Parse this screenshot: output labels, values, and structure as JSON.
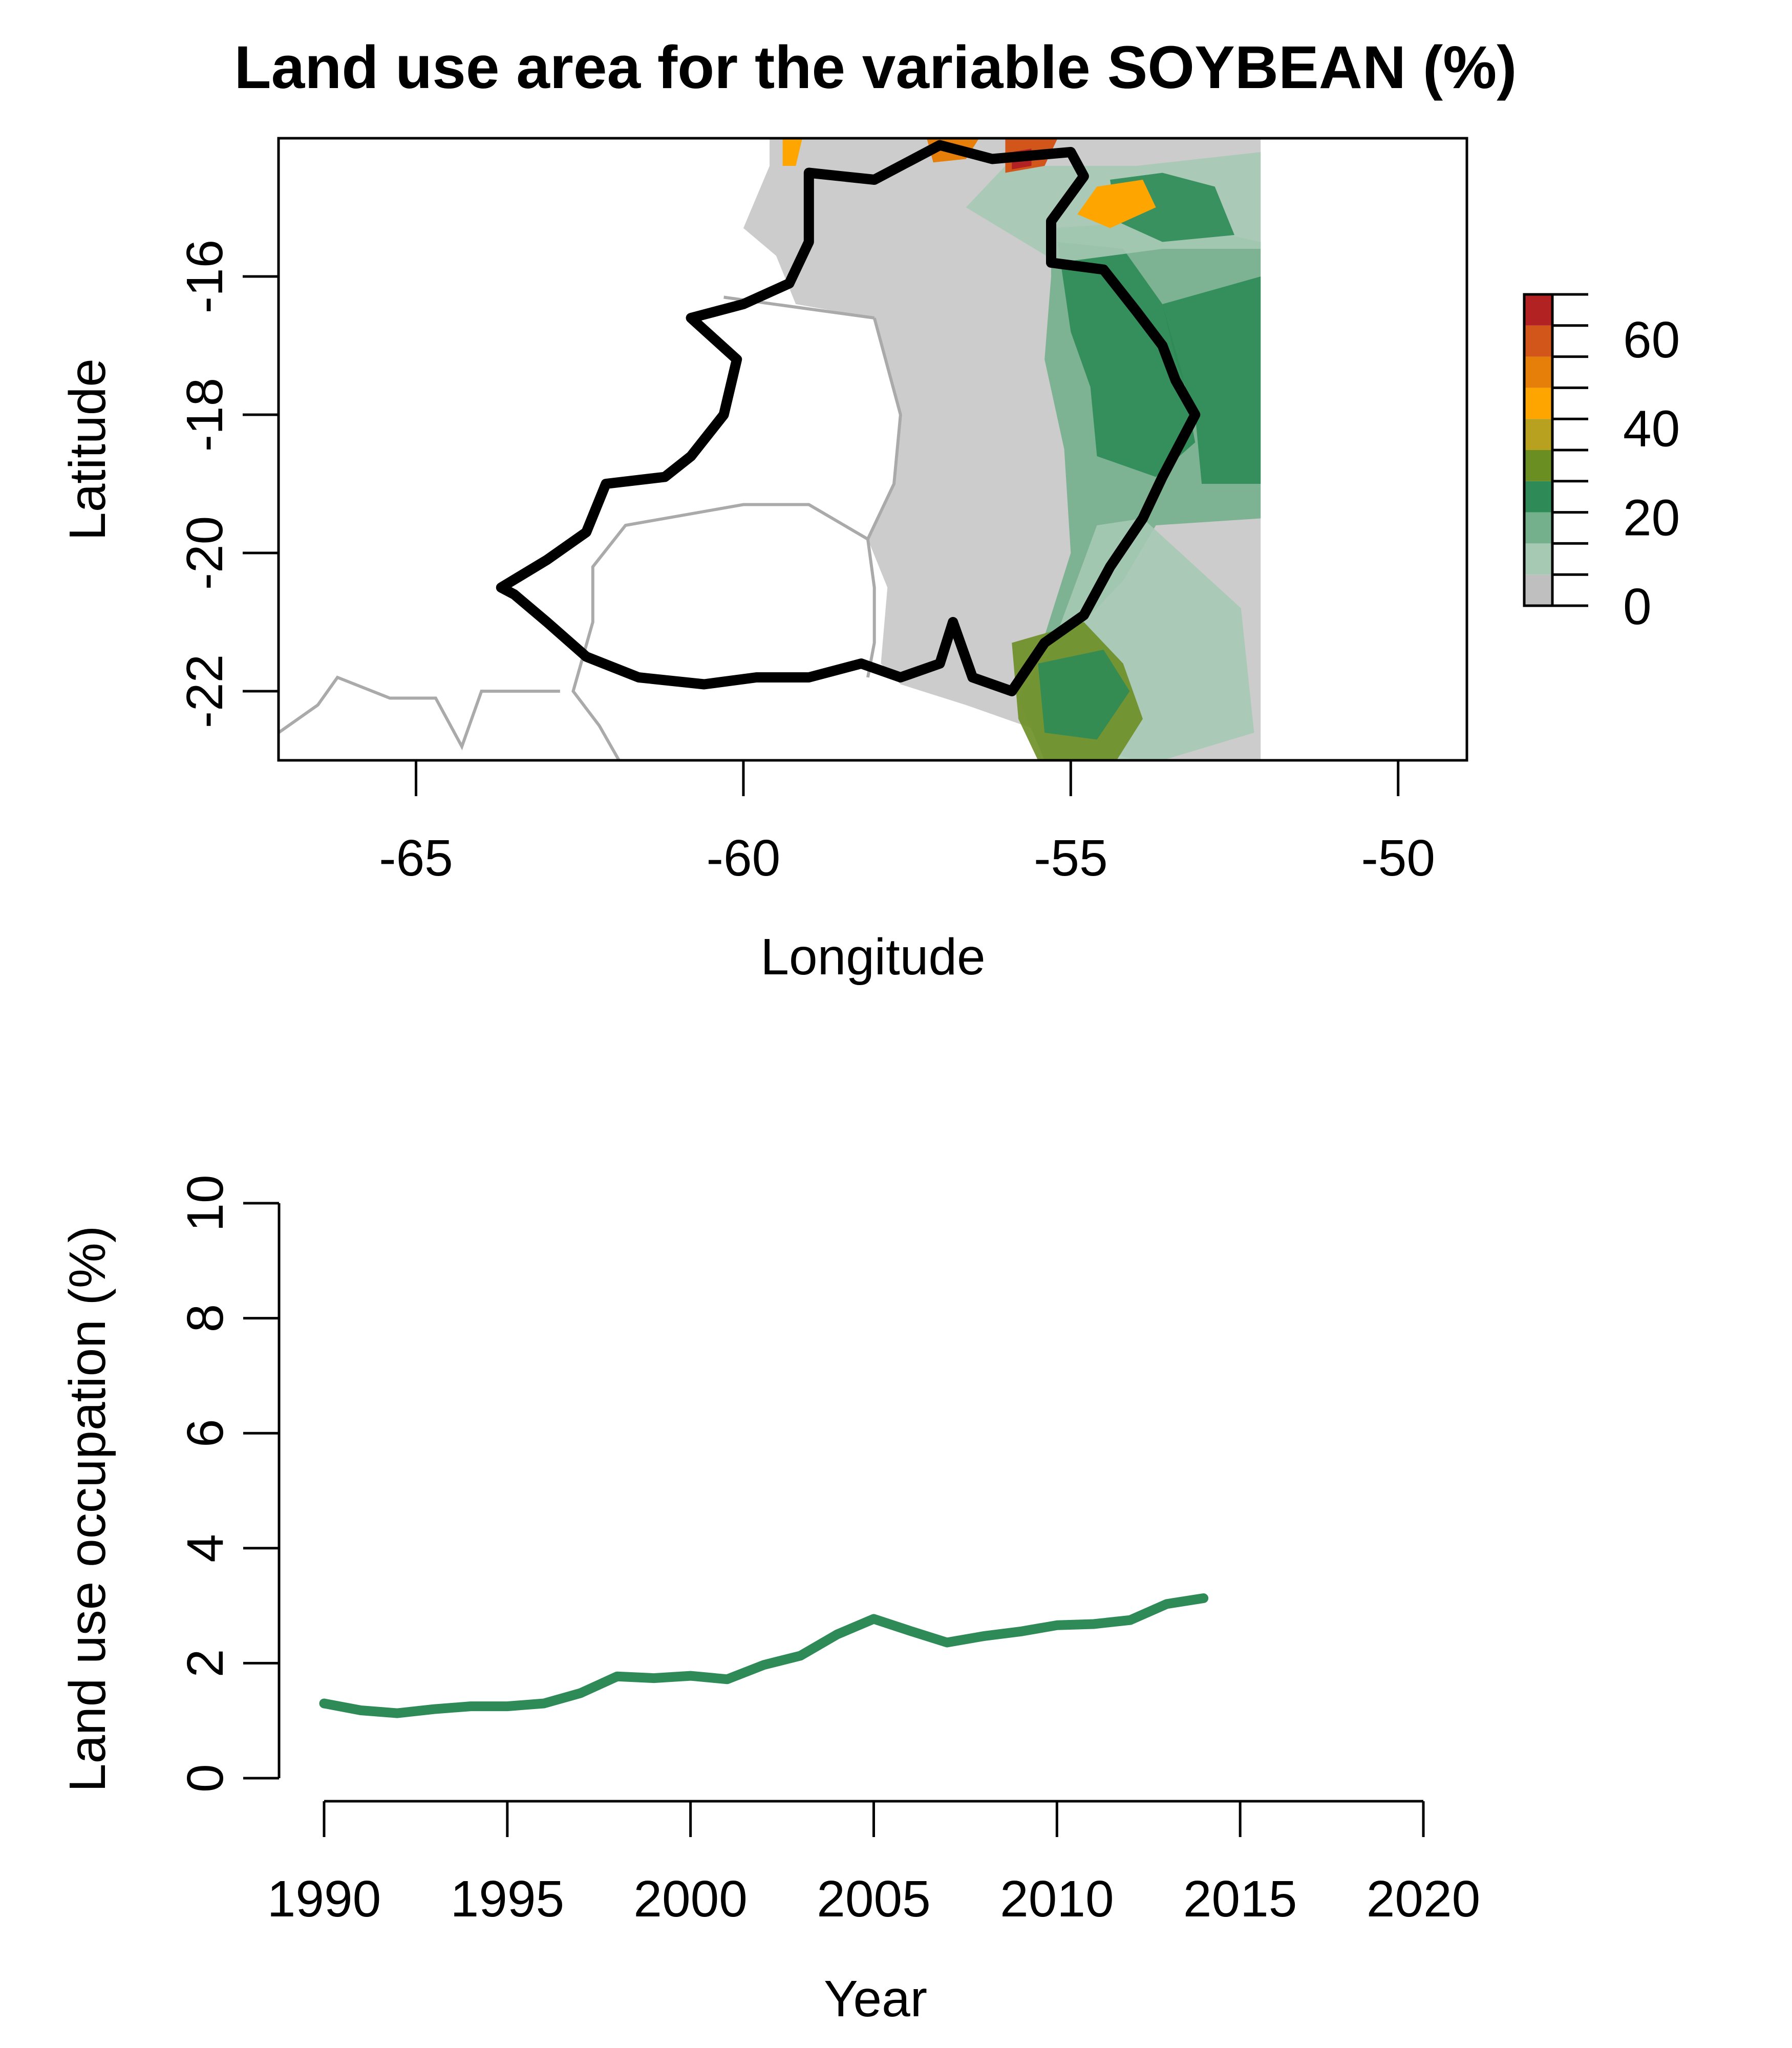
{
  "title": "Land use area for the variable SOYBEAN (%)",
  "colors": {
    "background_land": "#cccccc",
    "boundary": "#000000",
    "borders": "#aaaaaa",
    "series_line": "#2e8b57",
    "legend_bins": [
      "#bfbfbf",
      "#a6c9b4",
      "#74b08c",
      "#2e8b57",
      "#6b8e23",
      "#b8a11e",
      "#ffa500",
      "#e67e0a",
      "#d2561a",
      "#b22222"
    ]
  },
  "chart_data": [
    {
      "type": "heatmap",
      "title": "Land use area for the variable SOYBEAN (%)",
      "xlabel": "Longitude",
      "ylabel": "Latitude",
      "xlim": [
        -67.1,
        -48.95
      ],
      "ylim": [
        -23.0,
        -14.0
      ],
      "xticks": [
        -65,
        -60,
        -55,
        -50
      ],
      "yticks": [
        -16,
        -18,
        -20,
        -22
      ],
      "grid": false,
      "legend": {
        "placement": "right",
        "ticks": [
          0,
          20,
          40,
          60
        ],
        "range": [
          0,
          70
        ],
        "bins": 10
      },
      "raster_extent": {
        "lon": [
          -55.5,
          -52.1
        ],
        "lat": [
          -23.0,
          -14.0
        ]
      },
      "boundary": [
        [
          -59.0,
          -14.5
        ],
        [
          -58.0,
          -14.6
        ],
        [
          -57.0,
          -14.1
        ],
        [
          -56.2,
          -14.3
        ],
        [
          -55.0,
          -14.2
        ],
        [
          -54.8,
          -14.55
        ],
        [
          -55.3,
          -15.2
        ],
        [
          -55.3,
          -15.8
        ],
        [
          -54.5,
          -15.9
        ],
        [
          -54.0,
          -16.5
        ],
        [
          -53.6,
          -17.0
        ],
        [
          -53.4,
          -17.5
        ],
        [
          -53.1,
          -18.0
        ],
        [
          -53.6,
          -18.9
        ],
        [
          -53.9,
          -19.5
        ],
        [
          -54.4,
          -20.2
        ],
        [
          -54.8,
          -20.9
        ],
        [
          -55.4,
          -21.3
        ],
        [
          -55.9,
          -22.0
        ],
        [
          -56.5,
          -21.8
        ],
        [
          -56.8,
          -21.0
        ],
        [
          -57.0,
          -21.6
        ],
        [
          -57.6,
          -21.8
        ],
        [
          -58.2,
          -21.6
        ],
        [
          -59.0,
          -21.8
        ],
        [
          -59.8,
          -21.8
        ],
        [
          -60.6,
          -21.9
        ],
        [
          -61.6,
          -21.8
        ],
        [
          -62.4,
          -21.5
        ],
        [
          -63.0,
          -21.0
        ],
        [
          -63.5,
          -20.6
        ],
        [
          -63.7,
          -20.5
        ],
        [
          -63.0,
          -20.1
        ],
        [
          -62.4,
          -19.7
        ],
        [
          -62.1,
          -19.0
        ],
        [
          -61.2,
          -18.9
        ],
        [
          -60.8,
          -18.6
        ],
        [
          -60.3,
          -18.0
        ],
        [
          -60.1,
          -17.2
        ],
        [
          -60.8,
          -16.6
        ],
        [
          -60.0,
          -16.4
        ],
        [
          -59.3,
          -16.1
        ],
        [
          -59.0,
          -15.5
        ],
        [
          -59.0,
          -14.5
        ]
      ],
      "borders": [
        [
          [
            -58.0,
            -16.6
          ],
          [
            -60.3,
            -16.3
          ]
        ],
        [
          [
            -58.0,
            -16.6
          ],
          [
            -57.8,
            -17.3
          ],
          [
            -57.6,
            -18.0
          ],
          [
            -57.7,
            -19.0
          ],
          [
            -58.1,
            -19.8
          ],
          [
            -58.0,
            -20.5
          ],
          [
            -58.0,
            -21.3
          ],
          [
            -58.1,
            -21.8
          ]
        ],
        [
          [
            -58.1,
            -19.8
          ],
          [
            -59.0,
            -19.3
          ],
          [
            -60.0,
            -19.3
          ],
          [
            -61.8,
            -19.6
          ],
          [
            -62.3,
            -20.2
          ],
          [
            -62.3,
            -21.0
          ],
          [
            -62.6,
            -22.0
          ],
          [
            -62.2,
            -22.5
          ],
          [
            -61.9,
            -23.0
          ]
        ],
        [
          [
            -67.1,
            -22.6
          ],
          [
            -66.5,
            -22.2
          ],
          [
            -66.2,
            -21.8
          ],
          [
            -65.4,
            -22.1
          ],
          [
            -64.7,
            -22.1
          ],
          [
            -64.3,
            -22.8
          ],
          [
            -64.0,
            -22.0
          ],
          [
            -62.8,
            -22.0
          ]
        ]
      ]
    },
    {
      "type": "line",
      "xlabel": "Year",
      "ylabel": "Land use occupation (%)",
      "xlim": [
        1990,
        2020
      ],
      "ylim": [
        0,
        10
      ],
      "xticks": [
        1990,
        1995,
        2000,
        2005,
        2010,
        2015,
        2020
      ],
      "yticks": [
        0,
        2,
        4,
        6,
        8,
        10
      ],
      "grid": false,
      "x": [
        1990,
        1991,
        1992,
        1993,
        1994,
        1995,
        1996,
        1997,
        1998,
        1999,
        2000,
        2001,
        2002,
        2003,
        2004,
        2005,
        2006,
        2007,
        2008,
        2009,
        2010,
        2011,
        2012,
        2013,
        2014
      ],
      "series": [
        {
          "values": [
            1.3,
            1.18,
            1.13,
            1.2,
            1.25,
            1.25,
            1.3,
            1.48,
            1.77,
            1.74,
            1.78,
            1.72,
            1.97,
            2.13,
            2.5,
            2.77,
            2.56,
            2.36,
            2.47,
            2.55,
            2.66,
            2.68,
            2.75,
            3.03,
            3.13
          ]
        }
      ]
    }
  ]
}
